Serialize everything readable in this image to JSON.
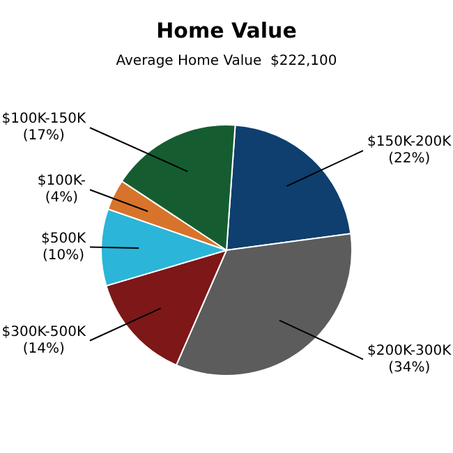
{
  "chart_data": {
    "type": "pie",
    "title": "Home Value",
    "subtitle": "Average Home Value  $222,100",
    "categories": [
      "$150K-200K",
      "$200K-300K",
      "$300K-500K",
      "$500K",
      "$100K-",
      "$100K-150K"
    ],
    "values": [
      22,
      34,
      14,
      10,
      4,
      17
    ],
    "colors": [
      "#0e3f6e",
      "#5c5c5c",
      "#7d1718",
      "#2bb5d8",
      "#d8732b",
      "#155d30"
    ],
    "value_labels": [
      "(22%)",
      "(34%)",
      "(14%)",
      "(10%)",
      "(4%)",
      "(17%)"
    ],
    "legend": false
  }
}
